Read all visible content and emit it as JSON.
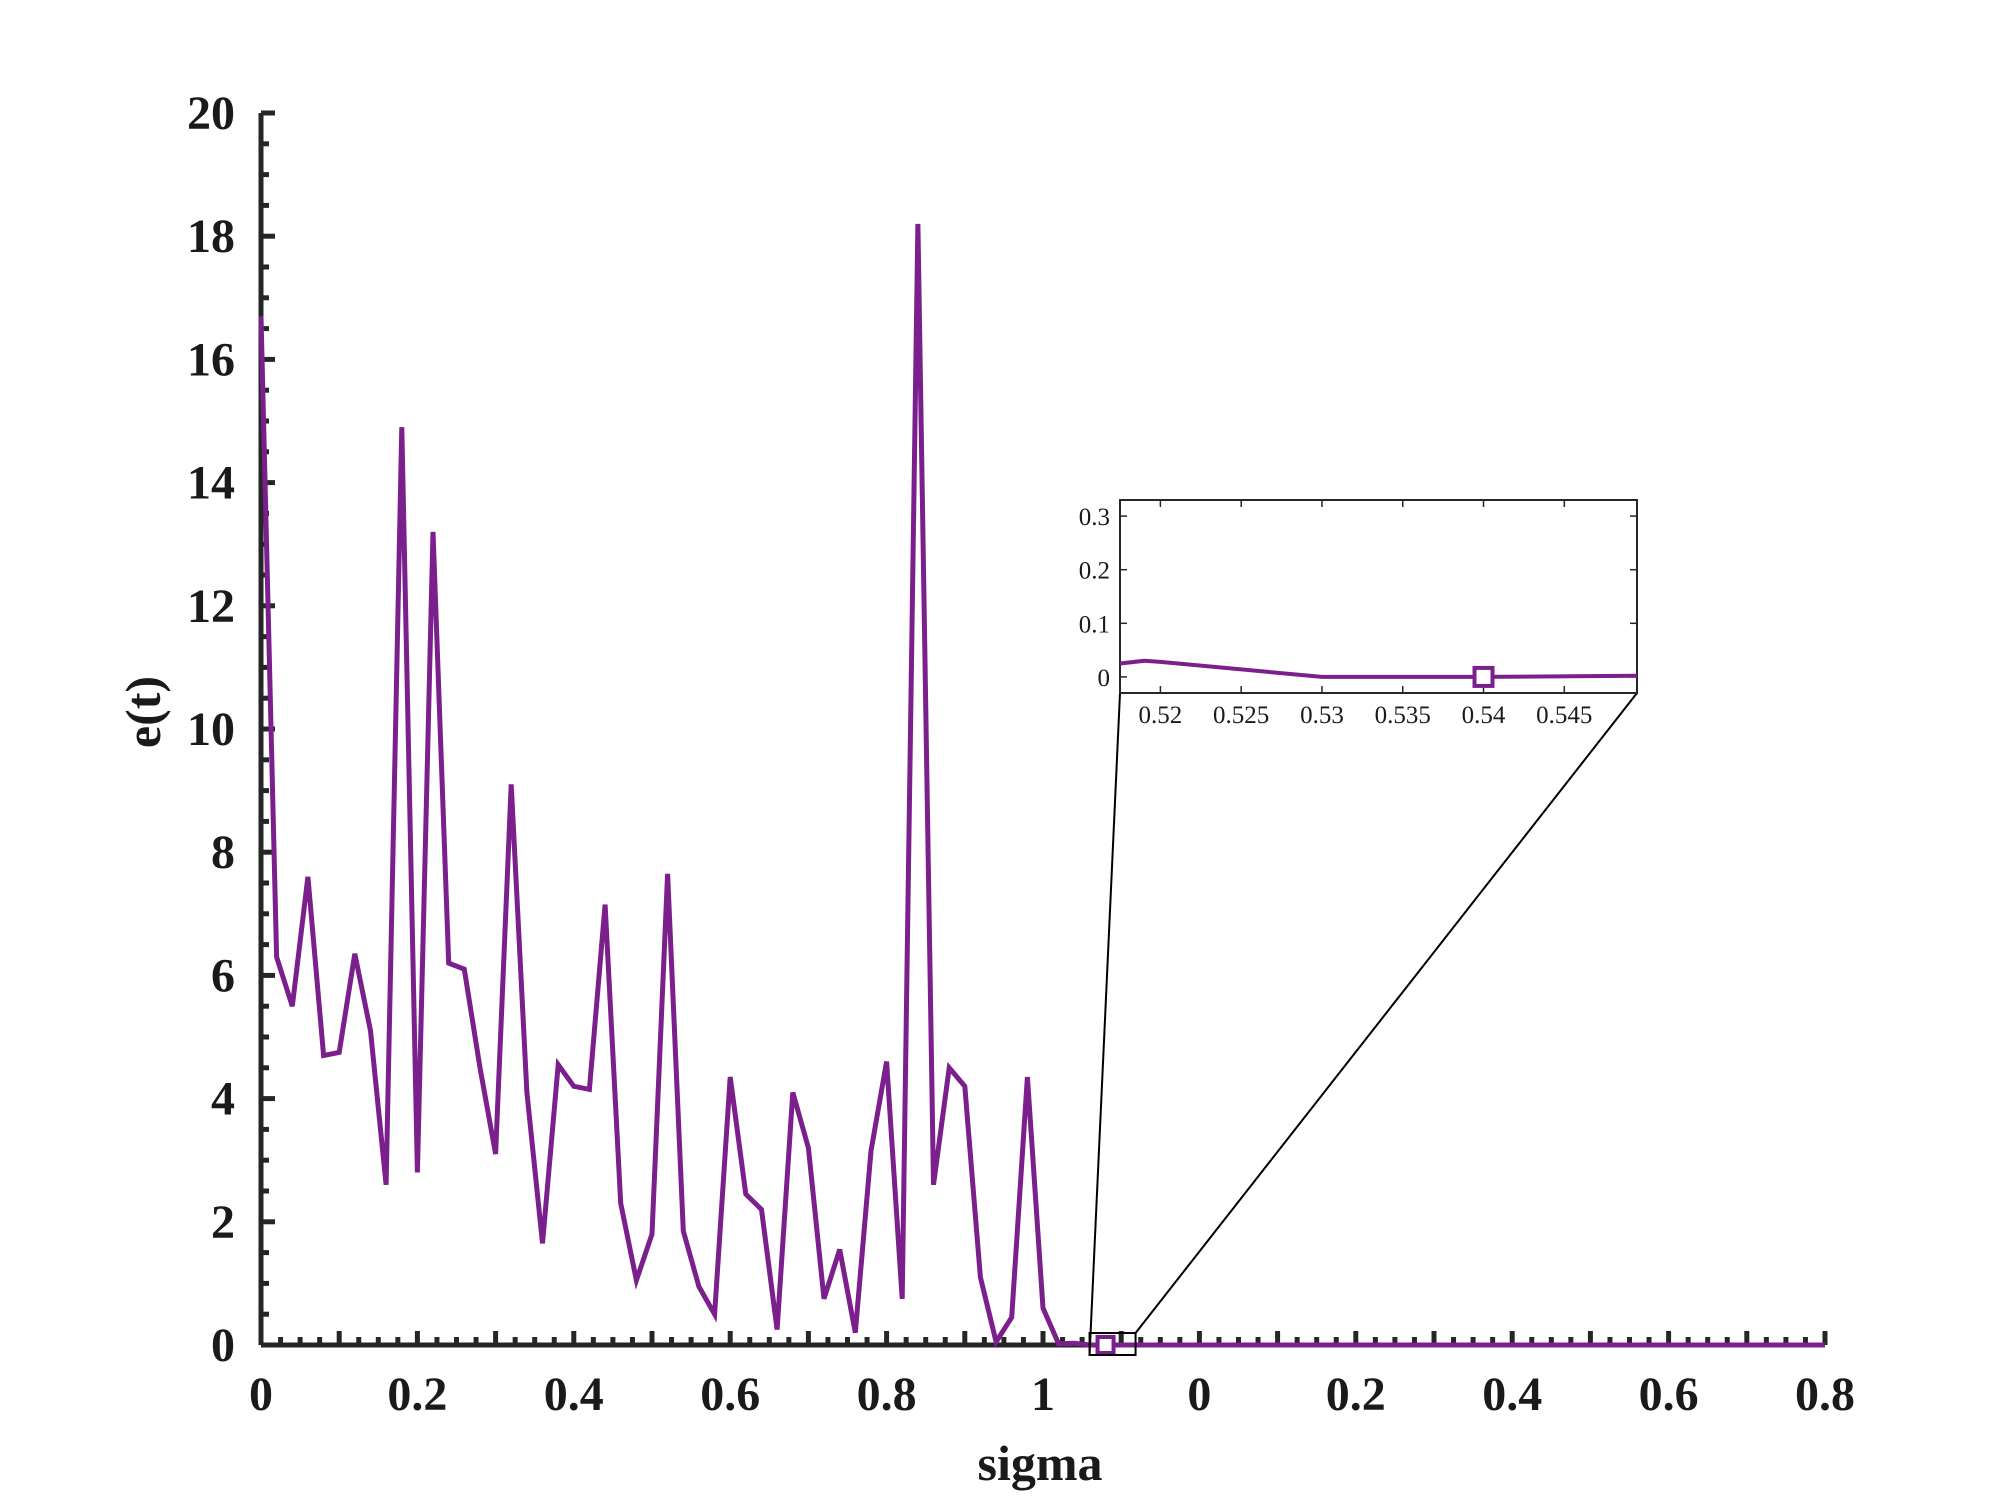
{
  "chart_data": [
    {
      "type": "line",
      "xlabel": "sigma",
      "ylabel": "e(t)",
      "ylim": [
        0,
        20
      ],
      "yticks": [
        0,
        2,
        4,
        6,
        8,
        10,
        12,
        14,
        16,
        18,
        20
      ],
      "x_tick_labels": [
        "0",
        "0.2",
        "0.4",
        "0.6",
        "0.8",
        "1",
        "0",
        "0.2",
        "0.4",
        "0.6",
        "0.8"
      ],
      "grid": false,
      "legend": "none",
      "series": [
        {
          "color": "#7b1f8c",
          "x": [
            0,
            0.02,
            0.04,
            0.06,
            0.08,
            0.1,
            0.12,
            0.14,
            0.16,
            0.18,
            0.2,
            0.22,
            0.24,
            0.26,
            0.28,
            0.3,
            0.32,
            0.34,
            0.36,
            0.38,
            0.4,
            0.42,
            0.44,
            0.46,
            0.48,
            0.5,
            0.52,
            0.54,
            0.56,
            0.58,
            0.6,
            0.62,
            0.64,
            0.66,
            0.68,
            0.7,
            0.72,
            0.74,
            0.76,
            0.78,
            0.8,
            0.82,
            0.84,
            0.86,
            0.88,
            0.9,
            0.92,
            0.94,
            0.96,
            0.98,
            1.0,
            1.02,
            1.04,
            1.06,
            1.08,
            1.1,
            1.2,
            1.3,
            1.4,
            1.5,
            1.6,
            1.7,
            1.8,
            1.9,
            2.0
          ],
          "values": [
            16.7,
            6.3,
            5.5,
            7.6,
            4.7,
            4.75,
            6.35,
            5.1,
            2.6,
            14.9,
            2.8,
            13.2,
            6.2,
            6.1,
            4.5,
            3.1,
            9.1,
            4.1,
            1.65,
            4.55,
            4.2,
            4.15,
            7.15,
            2.3,
            1.05,
            1.8,
            7.65,
            1.85,
            0.95,
            0.5,
            4.35,
            2.45,
            2.2,
            0.25,
            4.1,
            3.2,
            0.75,
            1.55,
            0.2,
            3.15,
            4.6,
            0.75,
            18.2,
            2.6,
            4.5,
            4.2,
            1.1,
            0.05,
            0.45,
            4.35,
            0.6,
            0.02,
            0.03,
            0.0,
            0.0,
            0.0,
            0.0,
            0.0,
            0.0,
            0.0,
            0.0,
            0.0,
            0.0,
            0.0,
            0.0
          ]
        }
      ],
      "marker": {
        "x": 1.08,
        "y": 0.0,
        "shape": "square"
      }
    },
    {
      "type": "line",
      "role": "inset",
      "xlim": [
        0.5175,
        0.5495
      ],
      "ylim": [
        -0.03,
        0.33
      ],
      "xticks": [
        0.52,
        0.525,
        0.53,
        0.535,
        0.54,
        0.545
      ],
      "x_tick_labels": [
        "0.52",
        "0.525",
        "0.53",
        "0.535",
        "0.54",
        "0.545"
      ],
      "yticks": [
        0,
        0.1,
        0.2,
        0.3
      ],
      "y_tick_labels": [
        "0",
        "0.1",
        "0.2",
        "0.3"
      ],
      "series": [
        {
          "color": "#7b1f8c",
          "x": [
            0.5175,
            0.519,
            0.52,
            0.53,
            0.54,
            0.5495
          ],
          "values": [
            0.025,
            0.03,
            0.028,
            0.0,
            0.0,
            0.002
          ]
        }
      ],
      "marker": {
        "x": 0.54,
        "y": 0.0,
        "shape": "square"
      }
    }
  ]
}
